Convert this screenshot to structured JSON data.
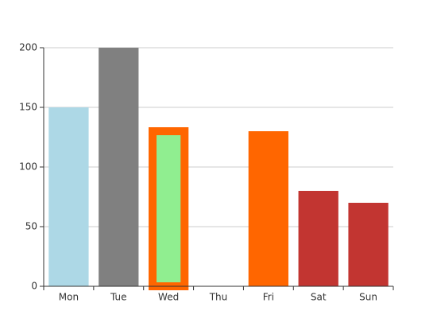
{
  "chart_data": {
    "type": "bar",
    "categories": [
      "Mon",
      "Tue",
      "Wed",
      "Thu",
      "Fri",
      "Sat",
      "Sun"
    ],
    "values": [
      150,
      200,
      130,
      0,
      130,
      80,
      70
    ],
    "colors": [
      "#add8e6",
      "#808080",
      "#90ee90",
      "#c23531",
      "#ff6600",
      "#c23531",
      "#c23531"
    ],
    "border_colors": [
      null,
      null,
      "#ff6600",
      null,
      null,
      null,
      null
    ],
    "ylim": [
      0,
      200
    ],
    "yticks": [
      0,
      50,
      100,
      150,
      200
    ],
    "grid": true
  }
}
